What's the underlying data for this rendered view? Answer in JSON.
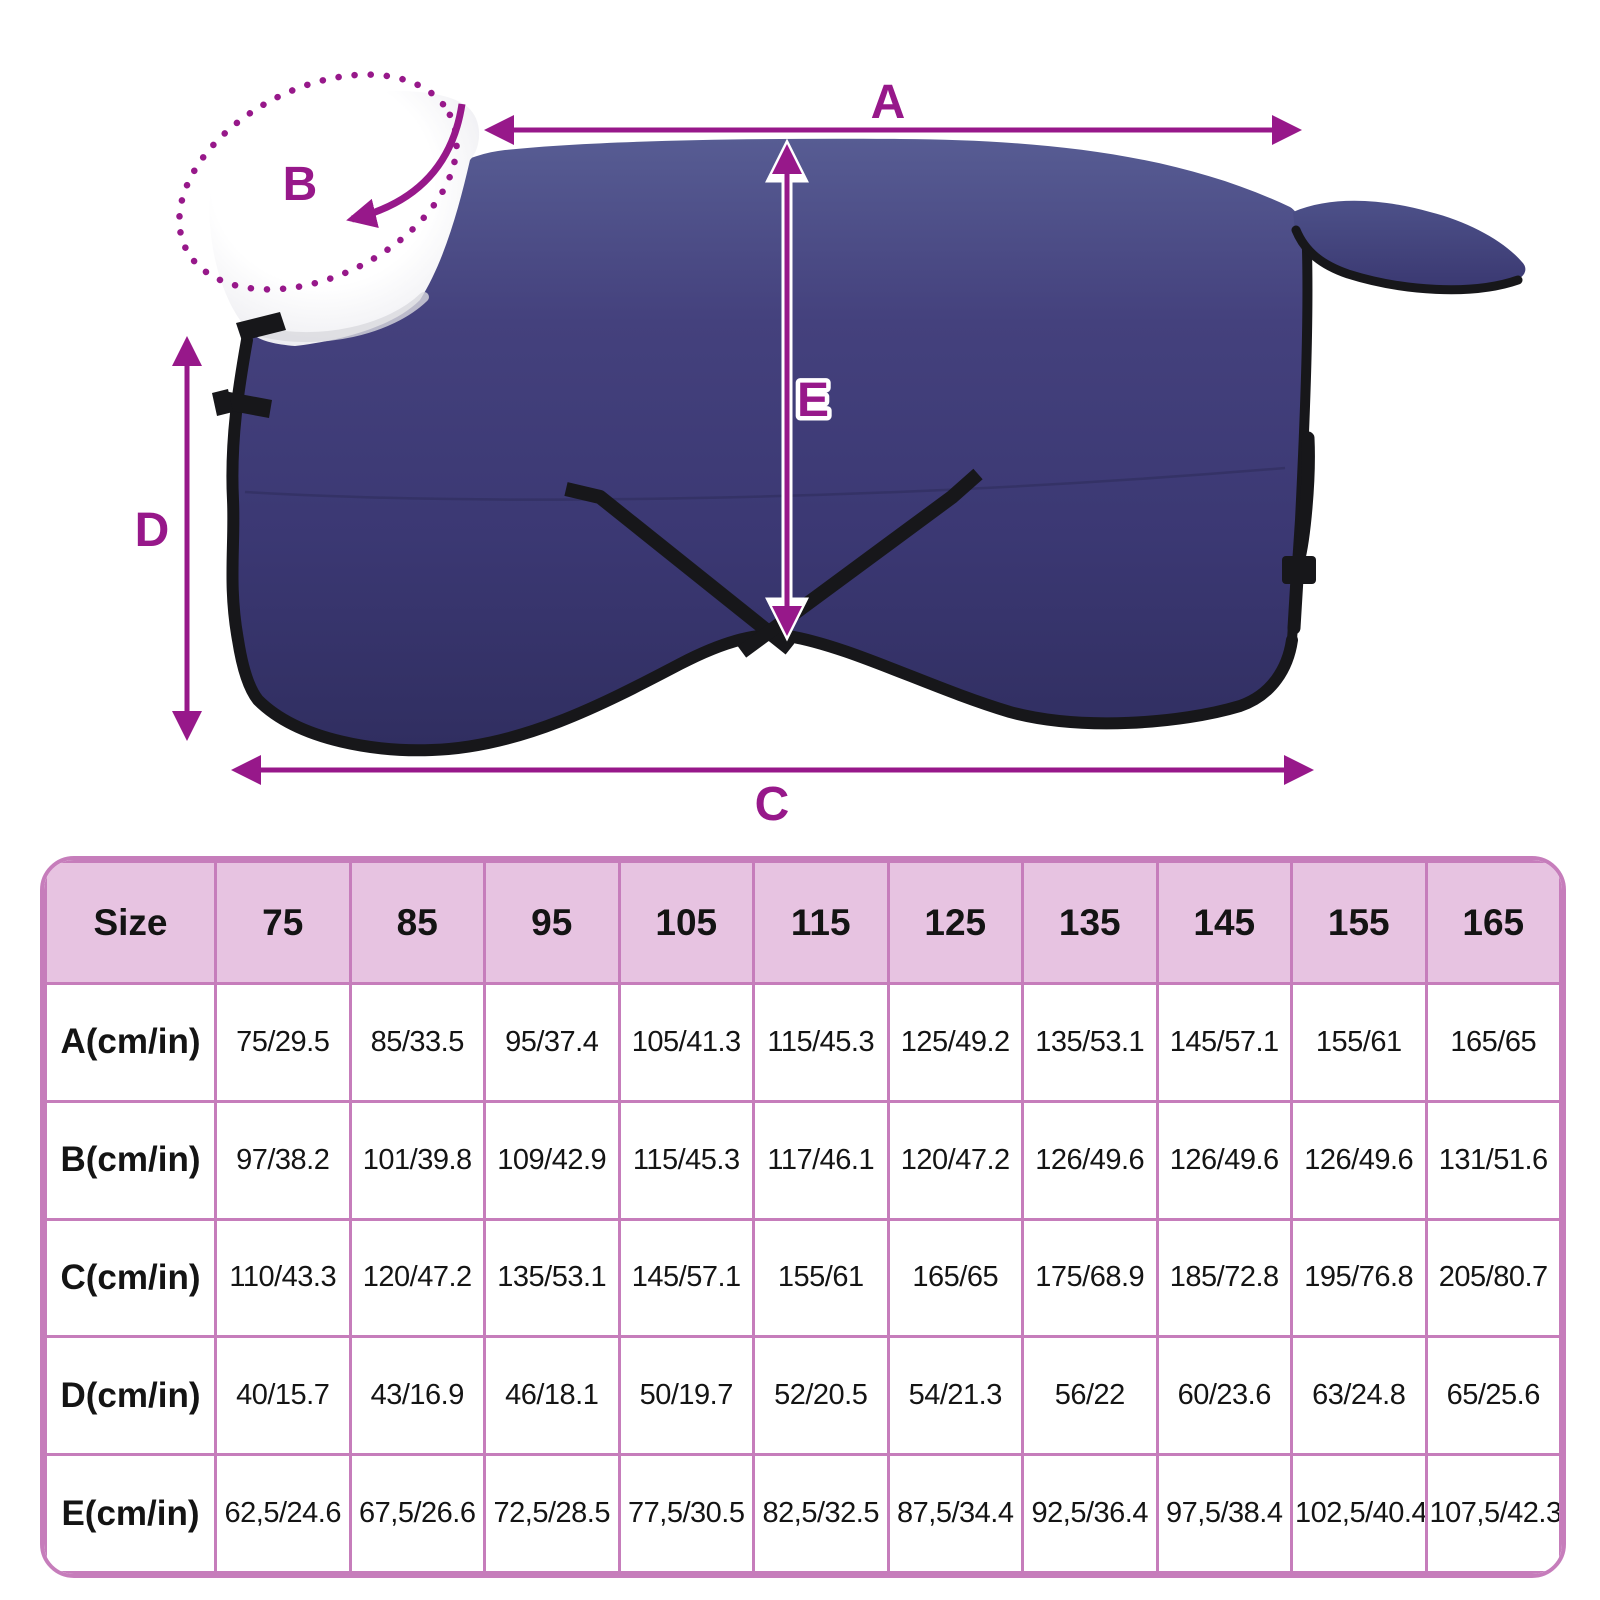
{
  "diagram": {
    "measure_labels": {
      "a": "A",
      "b": "B",
      "c": "C",
      "d": "D",
      "e": "E"
    },
    "colors": {
      "annotation_magenta": "#97188a",
      "blanket_navy": "#3f3d78",
      "binding_black": "#17171a",
      "collar_white": "#ffffff",
      "table_border_pink": "#c67dbb",
      "table_header_pink": "#e7c3e1"
    }
  },
  "table": {
    "header": [
      "Size",
      "75",
      "85",
      "95",
      "105",
      "115",
      "125",
      "135",
      "145",
      "155",
      "165"
    ],
    "rows": [
      {
        "label": "A(cm/in)",
        "values": [
          "75/29.5",
          "85/33.5",
          "95/37.4",
          "105/41.3",
          "115/45.3",
          "125/49.2",
          "135/53.1",
          "145/57.1",
          "155/61",
          "165/65"
        ]
      },
      {
        "label": "B(cm/in)",
        "values": [
          "97/38.2",
          "101/39.8",
          "109/42.9",
          "115/45.3",
          "117/46.1",
          "120/47.2",
          "126/49.6",
          "126/49.6",
          "126/49.6",
          "131/51.6"
        ]
      },
      {
        "label": "C(cm/in)",
        "values": [
          "110/43.3",
          "120/47.2",
          "135/53.1",
          "145/57.1",
          "155/61",
          "165/65",
          "175/68.9",
          "185/72.8",
          "195/76.8",
          "205/80.7"
        ]
      },
      {
        "label": "D(cm/in)",
        "values": [
          "40/15.7",
          "43/16.9",
          "46/18.1",
          "50/19.7",
          "52/20.5",
          "54/21.3",
          "56/22",
          "60/23.6",
          "63/24.8",
          "65/25.6"
        ]
      },
      {
        "label": "E(cm/in)",
        "values": [
          "62,5/24.6",
          "67,5/26.6",
          "72,5/28.5",
          "77,5/30.5",
          "82,5/32.5",
          "87,5/34.4",
          "92,5/36.4",
          "97,5/38.4",
          "102,5/40.4",
          "107,5/42.3"
        ]
      }
    ]
  }
}
